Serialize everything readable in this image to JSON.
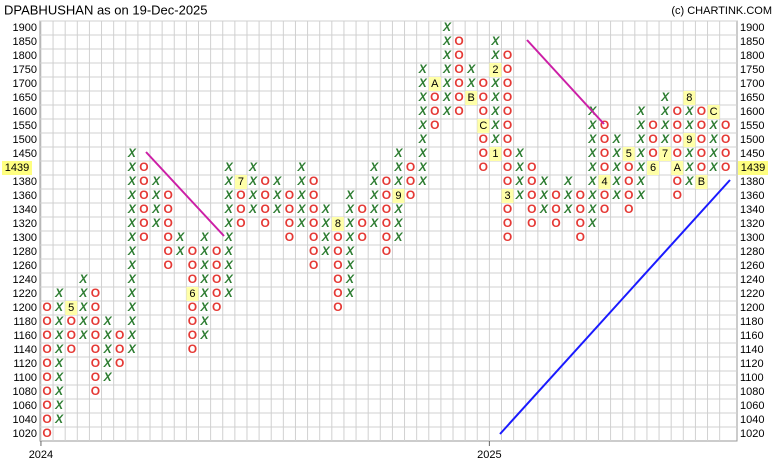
{
  "chart_data": {
    "type": "point-and-figure",
    "title": "DPABHUSHAN as on 19-Dec-2025",
    "credit": "(c) CHARTINK.COM",
    "levels": [
      1020,
      1040,
      1060,
      1080,
      1100,
      1120,
      1140,
      1160,
      1180,
      1200,
      1220,
      1240,
      1260,
      1280,
      1300,
      1320,
      1340,
      1360,
      1380,
      1400,
      1450,
      1500,
      1550,
      1600,
      1650,
      1700,
      1750,
      1800,
      1850,
      1900
    ],
    "yticks": [
      1020,
      1040,
      1060,
      1080,
      1100,
      1120,
      1140,
      1160,
      1180,
      1200,
      1220,
      1240,
      1260,
      1280,
      1300,
      1320,
      1340,
      1360,
      1380,
      1450,
      1500,
      1550,
      1600,
      1650,
      1700,
      1750,
      1800,
      1850,
      1900
    ],
    "last_price": 1439,
    "x_color": "#2e7d32",
    "o_color": "#e53935",
    "columns": [
      {
        "type": "O",
        "from": 1200,
        "to": 1020
      },
      {
        "type": "X",
        "from": 1040,
        "to": 1220
      },
      {
        "type": "O",
        "from": 1200,
        "to": 1140
      },
      {
        "type": "X",
        "from": 1160,
        "to": 1240
      },
      {
        "type": "O",
        "from": 1220,
        "to": 1080
      },
      {
        "type": "X",
        "from": 1100,
        "to": 1180
      },
      {
        "type": "O",
        "from": 1160,
        "to": 1120
      },
      {
        "type": "X",
        "from": 1140,
        "to": 1450
      },
      {
        "type": "O",
        "from": 1400,
        "to": 1300
      },
      {
        "type": "X",
        "from": 1320,
        "to": 1380
      },
      {
        "type": "O",
        "from": 1360,
        "to": 1260
      },
      {
        "type": "X",
        "from": 1280,
        "to": 1300
      },
      {
        "type": "O",
        "from": 1280,
        "to": 1140
      },
      {
        "type": "X",
        "from": 1160,
        "to": 1300
      },
      {
        "type": "O",
        "from": 1280,
        "to": 1200
      },
      {
        "type": "X",
        "from": 1220,
        "to": 1400
      },
      {
        "type": "O",
        "from": 1380,
        "to": 1320
      },
      {
        "type": "X",
        "from": 1340,
        "to": 1400
      },
      {
        "type": "O",
        "from": 1380,
        "to": 1320
      },
      {
        "type": "X",
        "from": 1340,
        "to": 1380
      },
      {
        "type": "O",
        "from": 1360,
        "to": 1300
      },
      {
        "type": "X",
        "from": 1320,
        "to": 1400
      },
      {
        "type": "O",
        "from": 1380,
        "to": 1260
      },
      {
        "type": "X",
        "from": 1280,
        "to": 1340
      },
      {
        "type": "O",
        "from": 1320,
        "to": 1200
      },
      {
        "type": "X",
        "from": 1220,
        "to": 1360
      },
      {
        "type": "O",
        "from": 1340,
        "to": 1300
      },
      {
        "type": "X",
        "from": 1320,
        "to": 1400
      },
      {
        "type": "O",
        "from": 1380,
        "to": 1280
      },
      {
        "type": "X",
        "from": 1300,
        "to": 1450
      },
      {
        "type": "O",
        "from": 1400,
        "to": 1360
      },
      {
        "type": "X",
        "from": 1380,
        "to": 1750
      },
      {
        "type": "O",
        "from": 1700,
        "to": 1550
      },
      {
        "type": "X",
        "from": 1600,
        "to": 1900
      },
      {
        "type": "O",
        "from": 1850,
        "to": 1600
      },
      {
        "type": "X",
        "from": 1650,
        "to": 1750
      },
      {
        "type": "O",
        "from": 1700,
        "to": 1400
      },
      {
        "type": "X",
        "from": 1450,
        "to": 1850
      },
      {
        "type": "O",
        "from": 1800,
        "to": 1300
      },
      {
        "type": "X",
        "from": 1360,
        "to": 1450
      },
      {
        "type": "O",
        "from": 1400,
        "to": 1320
      },
      {
        "type": "X",
        "from": 1340,
        "to": 1380
      },
      {
        "type": "O",
        "from": 1360,
        "to": 1320
      },
      {
        "type": "X",
        "from": 1340,
        "to": 1380
      },
      {
        "type": "O",
        "from": 1360,
        "to": 1300
      },
      {
        "type": "X",
        "from": 1320,
        "to": 1600
      },
      {
        "type": "O",
        "from": 1550,
        "to": 1340
      },
      {
        "type": "X",
        "from": 1360,
        "to": 1500
      },
      {
        "type": "O",
        "from": 1450,
        "to": 1340
      },
      {
        "type": "X",
        "from": 1360,
        "to": 1600
      },
      {
        "type": "O",
        "from": 1550,
        "to": 1400
      },
      {
        "type": "X",
        "from": 1450,
        "to": 1650
      },
      {
        "type": "O",
        "from": 1600,
        "to": 1360
      },
      {
        "type": "X",
        "from": 1380,
        "to": 1650
      },
      {
        "type": "O",
        "from": 1600,
        "to": 1380
      },
      {
        "type": "X",
        "from": 1400,
        "to": 1600
      },
      {
        "type": "O",
        "from": 1550,
        "to": 1400
      }
    ],
    "markers": [
      {
        "column": 2,
        "level": 1200,
        "label": "5"
      },
      {
        "column": 12,
        "level": 1220,
        "label": "6"
      },
      {
        "column": 16,
        "level": 1380,
        "label": "7"
      },
      {
        "column": 24,
        "level": 1320,
        "label": "8"
      },
      {
        "column": 29,
        "level": 1360,
        "label": "9"
      },
      {
        "column": 32,
        "level": 1700,
        "label": "A"
      },
      {
        "column": 35,
        "level": 1650,
        "label": "B"
      },
      {
        "column": 36,
        "level": 1550,
        "label": "C"
      },
      {
        "column": 37,
        "level": 1450,
        "label": "1"
      },
      {
        "column": 37,
        "level": 1750,
        "label": "2"
      },
      {
        "column": 38,
        "level": 1360,
        "label": "3"
      },
      {
        "column": 46,
        "level": 1380,
        "label": "4"
      },
      {
        "column": 48,
        "level": 1450,
        "label": "5"
      },
      {
        "column": 50,
        "level": 1400,
        "label": "6"
      },
      {
        "column": 51,
        "level": 1450,
        "label": "7"
      },
      {
        "column": 52,
        "level": 1400,
        "label": "A"
      },
      {
        "column": 53,
        "level": 1650,
        "label": "8"
      },
      {
        "column": 53,
        "level": 1500,
        "label": "9"
      },
      {
        "column": 54,
        "level": 1380,
        "label": "B"
      },
      {
        "column": 55,
        "level": 1600,
        "label": "C"
      }
    ],
    "years": [
      {
        "column": 0,
        "label": "2024"
      },
      {
        "column": 37,
        "label": "2025"
      }
    ]
  }
}
